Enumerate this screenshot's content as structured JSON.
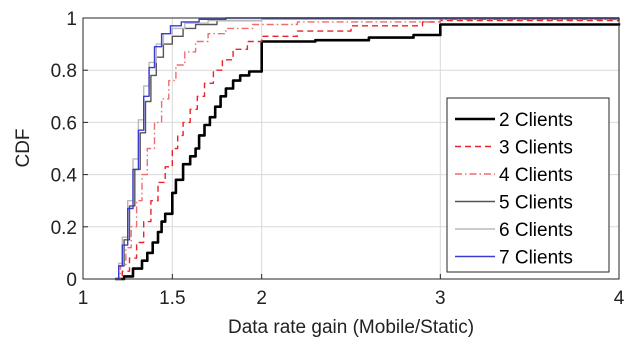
{
  "chart_data": {
    "type": "line",
    "xlabel": "Data rate gain (Mobile/Static)",
    "ylabel": "CDF",
    "xlim": [
      1,
      4
    ],
    "ylim": [
      0,
      1
    ],
    "xticks": [
      1,
      1.5,
      2,
      3,
      4
    ],
    "yticks": [
      0,
      0.2,
      0.4,
      0.6,
      0.8,
      1
    ],
    "xtick_labels": [
      "1",
      "1.5",
      "2",
      "3",
      "4"
    ],
    "ytick_labels": [
      "0",
      "0.2",
      "0.4",
      "0.6",
      "0.8",
      "1"
    ],
    "grid": true,
    "legend_position": "bottom-right",
    "series": [
      {
        "name": "2 Clients",
        "color": "#000000",
        "style": "solid",
        "weight": "thick",
        "points": [
          [
            1.18,
            0
          ],
          [
            1.23,
            0.01
          ],
          [
            1.28,
            0.04
          ],
          [
            1.33,
            0.07
          ],
          [
            1.36,
            0.1
          ],
          [
            1.39,
            0.14
          ],
          [
            1.42,
            0.18
          ],
          [
            1.44,
            0.22
          ],
          [
            1.46,
            0.25
          ],
          [
            1.5,
            0.26
          ],
          [
            1.5,
            0.33
          ],
          [
            1.52,
            0.38
          ],
          [
            1.56,
            0.44
          ],
          [
            1.6,
            0.47
          ],
          [
            1.63,
            0.5
          ],
          [
            1.65,
            0.55
          ],
          [
            1.68,
            0.59
          ],
          [
            1.71,
            0.62
          ],
          [
            1.74,
            0.66
          ],
          [
            1.77,
            0.7
          ],
          [
            1.8,
            0.73
          ],
          [
            1.84,
            0.76
          ],
          [
            1.88,
            0.78
          ],
          [
            1.93,
            0.795
          ],
          [
            2.0,
            0.8
          ],
          [
            2.0,
            0.91
          ],
          [
            2.3,
            0.915
          ],
          [
            2.6,
            0.925
          ],
          [
            2.85,
            0.935
          ],
          [
            3.0,
            0.94
          ],
          [
            3.0,
            0.975
          ],
          [
            4.0,
            0.98
          ]
        ]
      },
      {
        "name": "3 Clients",
        "color": "#e8232b",
        "style": "dashed",
        "weight": "normal",
        "points": [
          [
            1.18,
            0
          ],
          [
            1.22,
            0.03
          ],
          [
            1.26,
            0.08
          ],
          [
            1.3,
            0.14
          ],
          [
            1.34,
            0.22
          ],
          [
            1.38,
            0.3
          ],
          [
            1.42,
            0.37
          ],
          [
            1.46,
            0.43
          ],
          [
            1.5,
            0.5
          ],
          [
            1.53,
            0.55
          ],
          [
            1.56,
            0.6
          ],
          [
            1.6,
            0.65
          ],
          [
            1.64,
            0.7
          ],
          [
            1.68,
            0.75
          ],
          [
            1.73,
            0.8
          ],
          [
            1.78,
            0.84
          ],
          [
            1.84,
            0.88
          ],
          [
            1.92,
            0.91
          ],
          [
            2.0,
            0.93
          ],
          [
            2.2,
            0.95
          ],
          [
            2.5,
            0.97
          ],
          [
            2.9,
            0.985
          ],
          [
            3.0,
            0.99
          ],
          [
            4.0,
            0.995
          ]
        ]
      },
      {
        "name": "4 Clients",
        "color": "#f06c6f",
        "style": "dashdot",
        "weight": "normal",
        "points": [
          [
            1.18,
            0
          ],
          [
            1.21,
            0.05
          ],
          [
            1.24,
            0.12
          ],
          [
            1.27,
            0.2
          ],
          [
            1.3,
            0.3
          ],
          [
            1.33,
            0.4
          ],
          [
            1.36,
            0.5
          ],
          [
            1.4,
            0.6
          ],
          [
            1.44,
            0.69
          ],
          [
            1.48,
            0.76
          ],
          [
            1.52,
            0.82
          ],
          [
            1.57,
            0.87
          ],
          [
            1.63,
            0.91
          ],
          [
            1.7,
            0.94
          ],
          [
            1.8,
            0.96
          ],
          [
            1.95,
            0.975
          ],
          [
            2.2,
            0.985
          ],
          [
            3.0,
            0.995
          ],
          [
            4.0,
            1.0
          ]
        ]
      },
      {
        "name": "5 Clients",
        "color": "#555555",
        "style": "solid",
        "weight": "normal",
        "points": [
          [
            1.18,
            0
          ],
          [
            1.2,
            0.05
          ],
          [
            1.23,
            0.15
          ],
          [
            1.26,
            0.28
          ],
          [
            1.29,
            0.42
          ],
          [
            1.32,
            0.56
          ],
          [
            1.35,
            0.68
          ],
          [
            1.38,
            0.78
          ],
          [
            1.41,
            0.85
          ],
          [
            1.45,
            0.9
          ],
          [
            1.5,
            0.93
          ],
          [
            1.56,
            0.96
          ],
          [
            1.63,
            0.975
          ],
          [
            1.75,
            0.99
          ],
          [
            2.0,
            0.997
          ],
          [
            4.0,
            1.0
          ]
        ]
      },
      {
        "name": "6 Clients",
        "color": "#b9b9b9",
        "style": "solid",
        "weight": "normal",
        "points": [
          [
            1.18,
            0
          ],
          [
            1.2,
            0.06
          ],
          [
            1.22,
            0.16
          ],
          [
            1.25,
            0.3
          ],
          [
            1.28,
            0.46
          ],
          [
            1.31,
            0.61
          ],
          [
            1.34,
            0.74
          ],
          [
            1.37,
            0.83
          ],
          [
            1.41,
            0.9
          ],
          [
            1.45,
            0.94
          ],
          [
            1.5,
            0.96
          ],
          [
            1.57,
            0.98
          ],
          [
            1.7,
            0.99
          ],
          [
            2.0,
            1.0
          ],
          [
            4.0,
            1.0
          ]
        ]
      },
      {
        "name": "7 Clients",
        "color": "#3b3bd4",
        "style": "solid",
        "weight": "normal",
        "points": [
          [
            1.18,
            0
          ],
          [
            1.2,
            0.05
          ],
          [
            1.22,
            0.13
          ],
          [
            1.25,
            0.27
          ],
          [
            1.28,
            0.42
          ],
          [
            1.31,
            0.57
          ],
          [
            1.34,
            0.7
          ],
          [
            1.37,
            0.81
          ],
          [
            1.4,
            0.89
          ],
          [
            1.44,
            0.94
          ],
          [
            1.49,
            0.97
          ],
          [
            1.55,
            0.985
          ],
          [
            1.65,
            0.995
          ],
          [
            1.8,
            1.0
          ],
          [
            4.0,
            1.0
          ]
        ]
      }
    ]
  }
}
